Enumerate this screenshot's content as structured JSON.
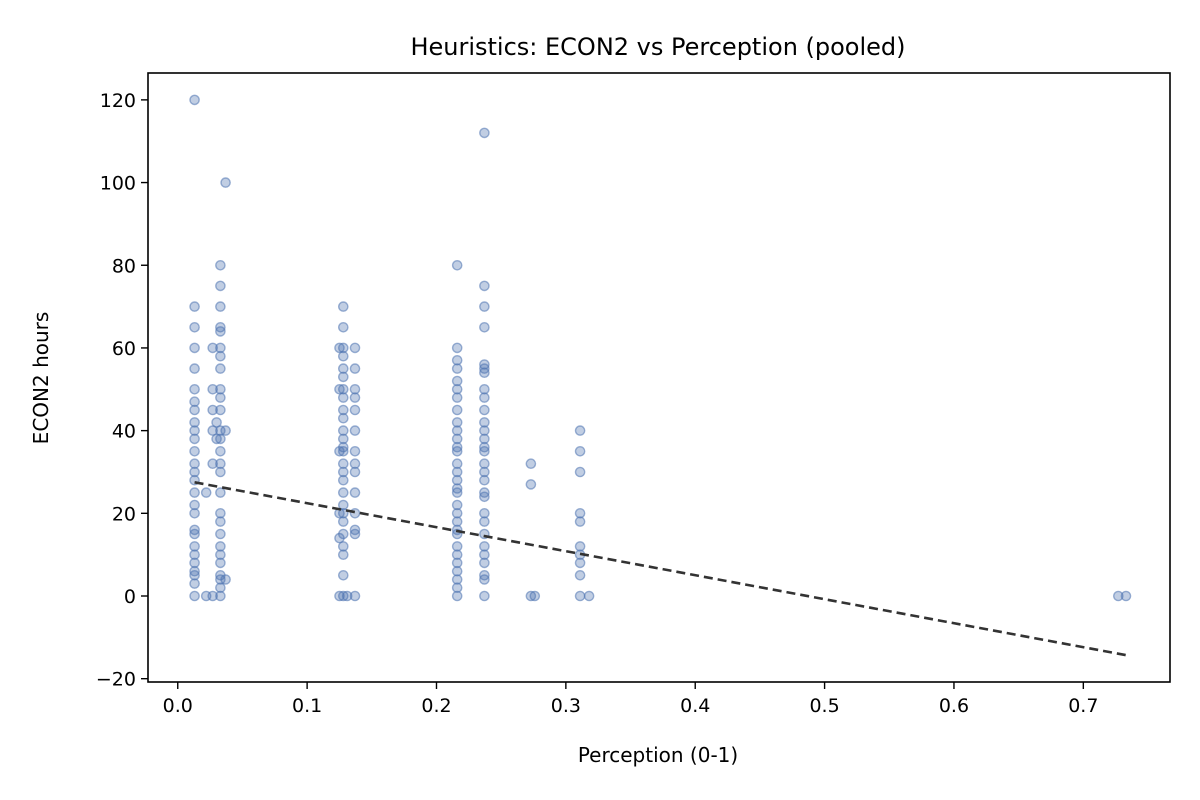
{
  "chart_data": {
    "type": "scatter",
    "title": "Heuristics: ECON2 vs Perception (pooled)",
    "xlabel": "Perception (0-1)",
    "ylabel": "ECON2 hours",
    "xlim": [
      -0.023,
      0.767
    ],
    "ylim": [
      -20.8,
      126.5
    ],
    "xticks": [
      "0.0",
      "0.1",
      "0.2",
      "0.3",
      "0.4",
      "0.5",
      "0.6",
      "0.7"
    ],
    "yticks": [
      "−20",
      "0",
      "20",
      "40",
      "60",
      "80",
      "100",
      "120"
    ],
    "grid": false,
    "legend": "none",
    "colors": {
      "points": "#4c72b0",
      "trend": "#333333"
    },
    "points": [
      [
        0.013,
        120
      ],
      [
        0.013,
        70
      ],
      [
        0.013,
        65
      ],
      [
        0.013,
        60
      ],
      [
        0.013,
        55
      ],
      [
        0.013,
        50
      ],
      [
        0.013,
        47
      ],
      [
        0.013,
        45
      ],
      [
        0.013,
        42
      ],
      [
        0.013,
        40
      ],
      [
        0.013,
        38
      ],
      [
        0.013,
        35
      ],
      [
        0.013,
        32
      ],
      [
        0.013,
        30
      ],
      [
        0.013,
        28
      ],
      [
        0.013,
        25
      ],
      [
        0.013,
        22
      ],
      [
        0.013,
        20
      ],
      [
        0.013,
        16
      ],
      [
        0.013,
        15
      ],
      [
        0.013,
        12
      ],
      [
        0.013,
        10
      ],
      [
        0.013,
        8
      ],
      [
        0.013,
        6
      ],
      [
        0.013,
        5
      ],
      [
        0.013,
        3
      ],
      [
        0.013,
        0
      ],
      [
        0.022,
        25
      ],
      [
        0.022,
        0
      ],
      [
        0.027,
        60
      ],
      [
        0.027,
        50
      ],
      [
        0.027,
        45
      ],
      [
        0.027,
        40
      ],
      [
        0.027,
        32
      ],
      [
        0.027,
        0
      ],
      [
        0.03,
        42
      ],
      [
        0.03,
        38
      ],
      [
        0.033,
        80
      ],
      [
        0.033,
        75
      ],
      [
        0.033,
        70
      ],
      [
        0.033,
        65
      ],
      [
        0.033,
        64
      ],
      [
        0.033,
        60
      ],
      [
        0.033,
        58
      ],
      [
        0.033,
        55
      ],
      [
        0.033,
        50
      ],
      [
        0.033,
        48
      ],
      [
        0.033,
        45
      ],
      [
        0.033,
        40
      ],
      [
        0.033,
        38
      ],
      [
        0.033,
        35
      ],
      [
        0.033,
        32
      ],
      [
        0.033,
        30
      ],
      [
        0.033,
        25
      ],
      [
        0.033,
        20
      ],
      [
        0.033,
        18
      ],
      [
        0.033,
        15
      ],
      [
        0.033,
        12
      ],
      [
        0.033,
        10
      ],
      [
        0.033,
        8
      ],
      [
        0.033,
        5
      ],
      [
        0.033,
        4
      ],
      [
        0.033,
        2
      ],
      [
        0.033,
        0
      ],
      [
        0.037,
        100
      ],
      [
        0.037,
        40
      ],
      [
        0.037,
        4
      ],
      [
        0.125,
        60
      ],
      [
        0.125,
        50
      ],
      [
        0.125,
        35
      ],
      [
        0.125,
        20
      ],
      [
        0.125,
        14
      ],
      [
        0.125,
        0
      ],
      [
        0.128,
        70
      ],
      [
        0.128,
        65
      ],
      [
        0.128,
        60
      ],
      [
        0.128,
        58
      ],
      [
        0.128,
        55
      ],
      [
        0.128,
        53
      ],
      [
        0.128,
        50
      ],
      [
        0.128,
        48
      ],
      [
        0.128,
        45
      ],
      [
        0.128,
        43
      ],
      [
        0.128,
        40
      ],
      [
        0.128,
        38
      ],
      [
        0.128,
        36
      ],
      [
        0.128,
        35
      ],
      [
        0.128,
        32
      ],
      [
        0.128,
        30
      ],
      [
        0.128,
        28
      ],
      [
        0.128,
        25
      ],
      [
        0.128,
        22
      ],
      [
        0.128,
        20
      ],
      [
        0.128,
        18
      ],
      [
        0.128,
        15
      ],
      [
        0.128,
        12
      ],
      [
        0.128,
        10
      ],
      [
        0.128,
        5
      ],
      [
        0.128,
        0
      ],
      [
        0.131,
        0
      ],
      [
        0.137,
        60
      ],
      [
        0.137,
        55
      ],
      [
        0.137,
        50
      ],
      [
        0.137,
        48
      ],
      [
        0.137,
        45
      ],
      [
        0.137,
        40
      ],
      [
        0.137,
        35
      ],
      [
        0.137,
        32
      ],
      [
        0.137,
        30
      ],
      [
        0.137,
        25
      ],
      [
        0.137,
        20
      ],
      [
        0.137,
        16
      ],
      [
        0.137,
        15
      ],
      [
        0.137,
        0
      ],
      [
        0.216,
        80
      ],
      [
        0.216,
        60
      ],
      [
        0.216,
        57
      ],
      [
        0.216,
        55
      ],
      [
        0.216,
        52
      ],
      [
        0.216,
        50
      ],
      [
        0.216,
        48
      ],
      [
        0.216,
        45
      ],
      [
        0.216,
        42
      ],
      [
        0.216,
        40
      ],
      [
        0.216,
        38
      ],
      [
        0.216,
        36
      ],
      [
        0.216,
        35
      ],
      [
        0.216,
        32
      ],
      [
        0.216,
        30
      ],
      [
        0.216,
        28
      ],
      [
        0.216,
        26
      ],
      [
        0.216,
        25
      ],
      [
        0.216,
        22
      ],
      [
        0.216,
        20
      ],
      [
        0.216,
        18
      ],
      [
        0.216,
        16
      ],
      [
        0.216,
        15
      ],
      [
        0.216,
        12
      ],
      [
        0.216,
        10
      ],
      [
        0.216,
        8
      ],
      [
        0.216,
        6
      ],
      [
        0.216,
        4
      ],
      [
        0.216,
        2
      ],
      [
        0.216,
        0
      ],
      [
        0.237,
        112
      ],
      [
        0.237,
        75
      ],
      [
        0.237,
        70
      ],
      [
        0.237,
        65
      ],
      [
        0.237,
        56
      ],
      [
        0.237,
        55
      ],
      [
        0.237,
        54
      ],
      [
        0.237,
        50
      ],
      [
        0.237,
        48
      ],
      [
        0.237,
        45
      ],
      [
        0.237,
        42
      ],
      [
        0.237,
        40
      ],
      [
        0.237,
        38
      ],
      [
        0.237,
        36
      ],
      [
        0.237,
        35
      ],
      [
        0.237,
        32
      ],
      [
        0.237,
        30
      ],
      [
        0.237,
        28
      ],
      [
        0.237,
        25
      ],
      [
        0.237,
        24
      ],
      [
        0.237,
        20
      ],
      [
        0.237,
        18
      ],
      [
        0.237,
        15
      ],
      [
        0.237,
        12
      ],
      [
        0.237,
        10
      ],
      [
        0.237,
        8
      ],
      [
        0.237,
        5
      ],
      [
        0.237,
        4
      ],
      [
        0.237,
        0
      ],
      [
        0.273,
        32
      ],
      [
        0.273,
        27
      ],
      [
        0.273,
        0
      ],
      [
        0.276,
        0
      ],
      [
        0.311,
        40
      ],
      [
        0.311,
        35
      ],
      [
        0.311,
        30
      ],
      [
        0.311,
        20
      ],
      [
        0.311,
        18
      ],
      [
        0.311,
        12
      ],
      [
        0.311,
        10
      ],
      [
        0.311,
        8
      ],
      [
        0.311,
        5
      ],
      [
        0.311,
        0
      ],
      [
        0.318,
        0
      ],
      [
        0.727,
        0
      ],
      [
        0.733,
        0
      ]
    ],
    "trend": [
      [
        0.013,
        27.5
      ],
      [
        0.733,
        -14.3
      ]
    ]
  }
}
